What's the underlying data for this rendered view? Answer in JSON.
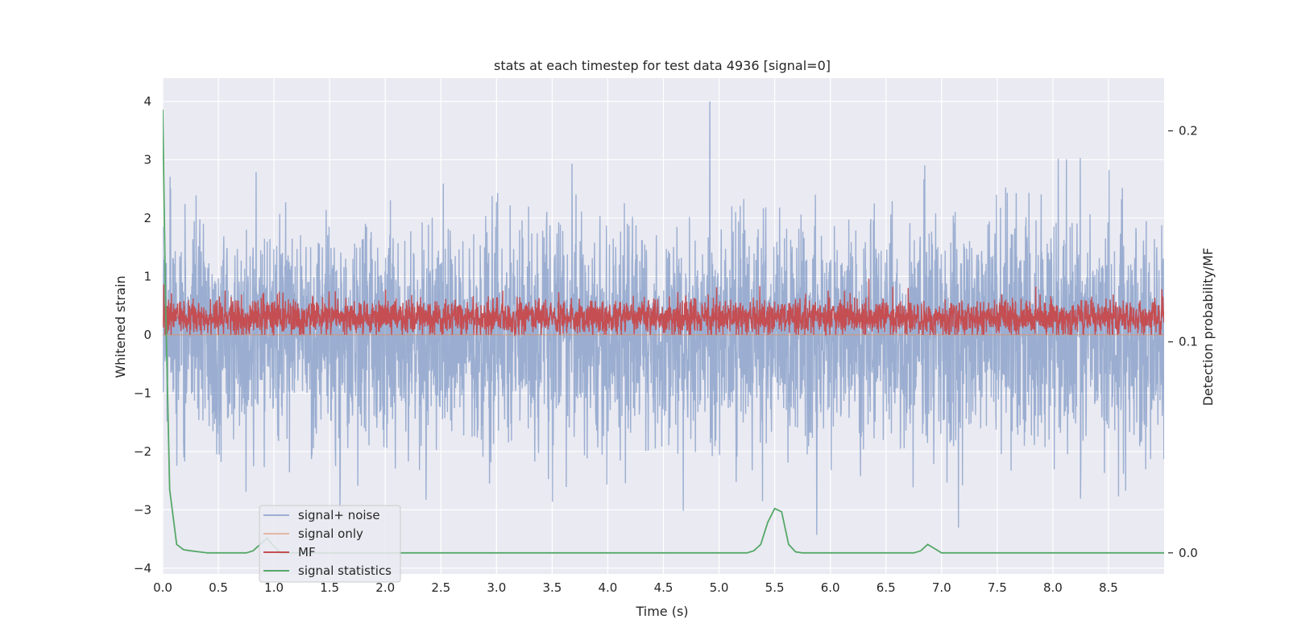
{
  "chart_data": {
    "type": "line",
    "title": "stats at each timestep for test data 4936 [signal=0]",
    "xlabel": "Time (s)",
    "ylabel_left": "Whitened strain",
    "ylabel_right": "Detection probability/MF",
    "xlim": [
      0.0,
      9.0
    ],
    "ylim_left": [
      -4.1,
      4.4
    ],
    "ylim_right": [
      -0.01,
      0.225
    ],
    "x_ticks": [
      "0.0",
      "0.5",
      "1.0",
      "1.5",
      "2.0",
      "2.5",
      "3.0",
      "3.5",
      "4.0",
      "4.5",
      "5.0",
      "5.5",
      "6.0",
      "6.5",
      "7.0",
      "7.5",
      "8.0",
      "8.5"
    ],
    "x_tick_values": [
      0.0,
      0.5,
      1.0,
      1.5,
      2.0,
      2.5,
      3.0,
      3.5,
      4.0,
      4.5,
      5.0,
      5.5,
      6.0,
      6.5,
      7.0,
      7.5,
      8.0,
      8.5
    ],
    "y_left_ticks": [
      "−4",
      "−3",
      "−2",
      "−1",
      "0",
      "1",
      "2",
      "3",
      "4"
    ],
    "y_left_tick_values": [
      -4,
      -3,
      -2,
      -1,
      0,
      1,
      2,
      3,
      4
    ],
    "y_right_ticks": [
      "0.0",
      "0.1",
      "0.2"
    ],
    "y_right_tick_values": [
      0.0,
      0.1,
      0.2
    ],
    "grid": true,
    "legend_position": "lower-left",
    "series": [
      {
        "name": "signal+ noise",
        "axis": "left",
        "color": "#4c72b0",
        "opacity": 0.5,
        "kind": "dense-noise",
        "approx_range": [
          -3.7,
          4.0
        ],
        "typical_range": [
          -2.0,
          2.0
        ],
        "sample_rate_hz": 410
      },
      {
        "name": "signal only",
        "axis": "left",
        "color": "#dd8452",
        "opacity": 0.5,
        "kind": "flat",
        "y": [
          [
            0.0,
            0.0
          ],
          [
            9.0,
            0.0
          ]
        ]
      },
      {
        "name": "MF",
        "axis": "left",
        "color": "#c44e52",
        "kind": "dense-noise",
        "approx_range": [
          0.0,
          1.0
        ],
        "typical_range": [
          0.1,
          0.6
        ],
        "sample_rate_hz": 410
      },
      {
        "name": "signal statistics",
        "axis": "right",
        "color": "#55a868",
        "kind": "line",
        "points": [
          [
            0.0,
            0.21
          ],
          [
            0.025,
            0.12
          ],
          [
            0.0625,
            0.03
          ],
          [
            0.125,
            0.004
          ],
          [
            0.1875,
            0.0015
          ],
          [
            0.25,
            0.001
          ],
          [
            0.4,
            0.0
          ],
          [
            0.75,
            0.0
          ],
          [
            0.8125,
            0.001
          ],
          [
            0.875,
            0.004
          ],
          [
            0.9375,
            0.007
          ],
          [
            1.0,
            0.003
          ],
          [
            1.0625,
            0.0
          ],
          [
            5.25,
            0.0
          ],
          [
            5.3125,
            0.001
          ],
          [
            5.375,
            0.004
          ],
          [
            5.4375,
            0.0145
          ],
          [
            5.5,
            0.021
          ],
          [
            5.5625,
            0.0195
          ],
          [
            5.625,
            0.004
          ],
          [
            5.6875,
            0.0005
          ],
          [
            5.75,
            0.0
          ],
          [
            6.75,
            0.0
          ],
          [
            6.8125,
            0.001
          ],
          [
            6.875,
            0.004
          ],
          [
            6.9375,
            0.002
          ],
          [
            7.0,
            0.0
          ],
          [
            9.0,
            0.0
          ]
        ]
      }
    ]
  }
}
